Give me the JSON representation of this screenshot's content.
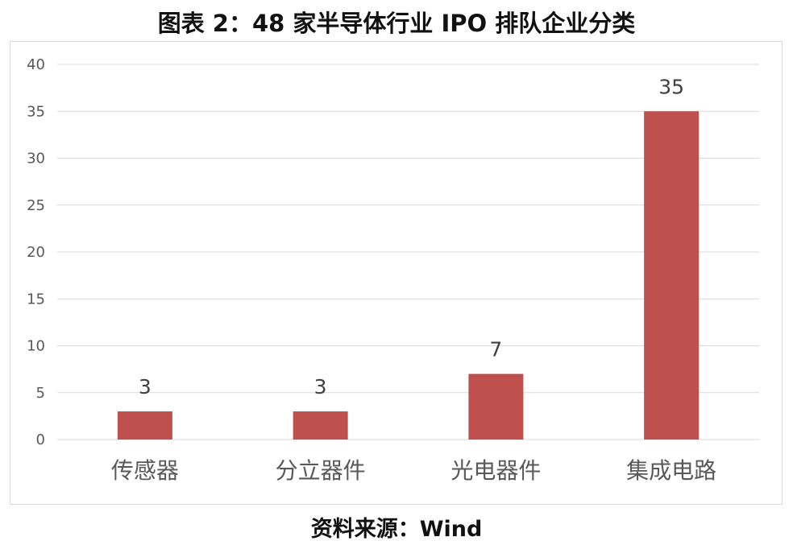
{
  "title": "图表 2：48 家半导体行业 IPO 排队企业分类",
  "source": "资料来源：Wind",
  "colors": {
    "bar": "#c0504d",
    "grid": "#d9d9d9",
    "tick_text": "#595959",
    "label_text": "#404040"
  },
  "chart_data": {
    "type": "bar",
    "title": "",
    "xlabel": "",
    "ylabel": "",
    "categories": [
      "传感器",
      "分立器件",
      "光电器件",
      "集成电路"
    ],
    "values": [
      3,
      3,
      7,
      35
    ],
    "data_labels": [
      "3",
      "3",
      "7",
      "35"
    ],
    "ylim": [
      0,
      40
    ],
    "yticks": [
      0,
      5,
      10,
      15,
      20,
      25,
      30,
      35,
      40
    ],
    "grid": true,
    "legend": "none"
  }
}
